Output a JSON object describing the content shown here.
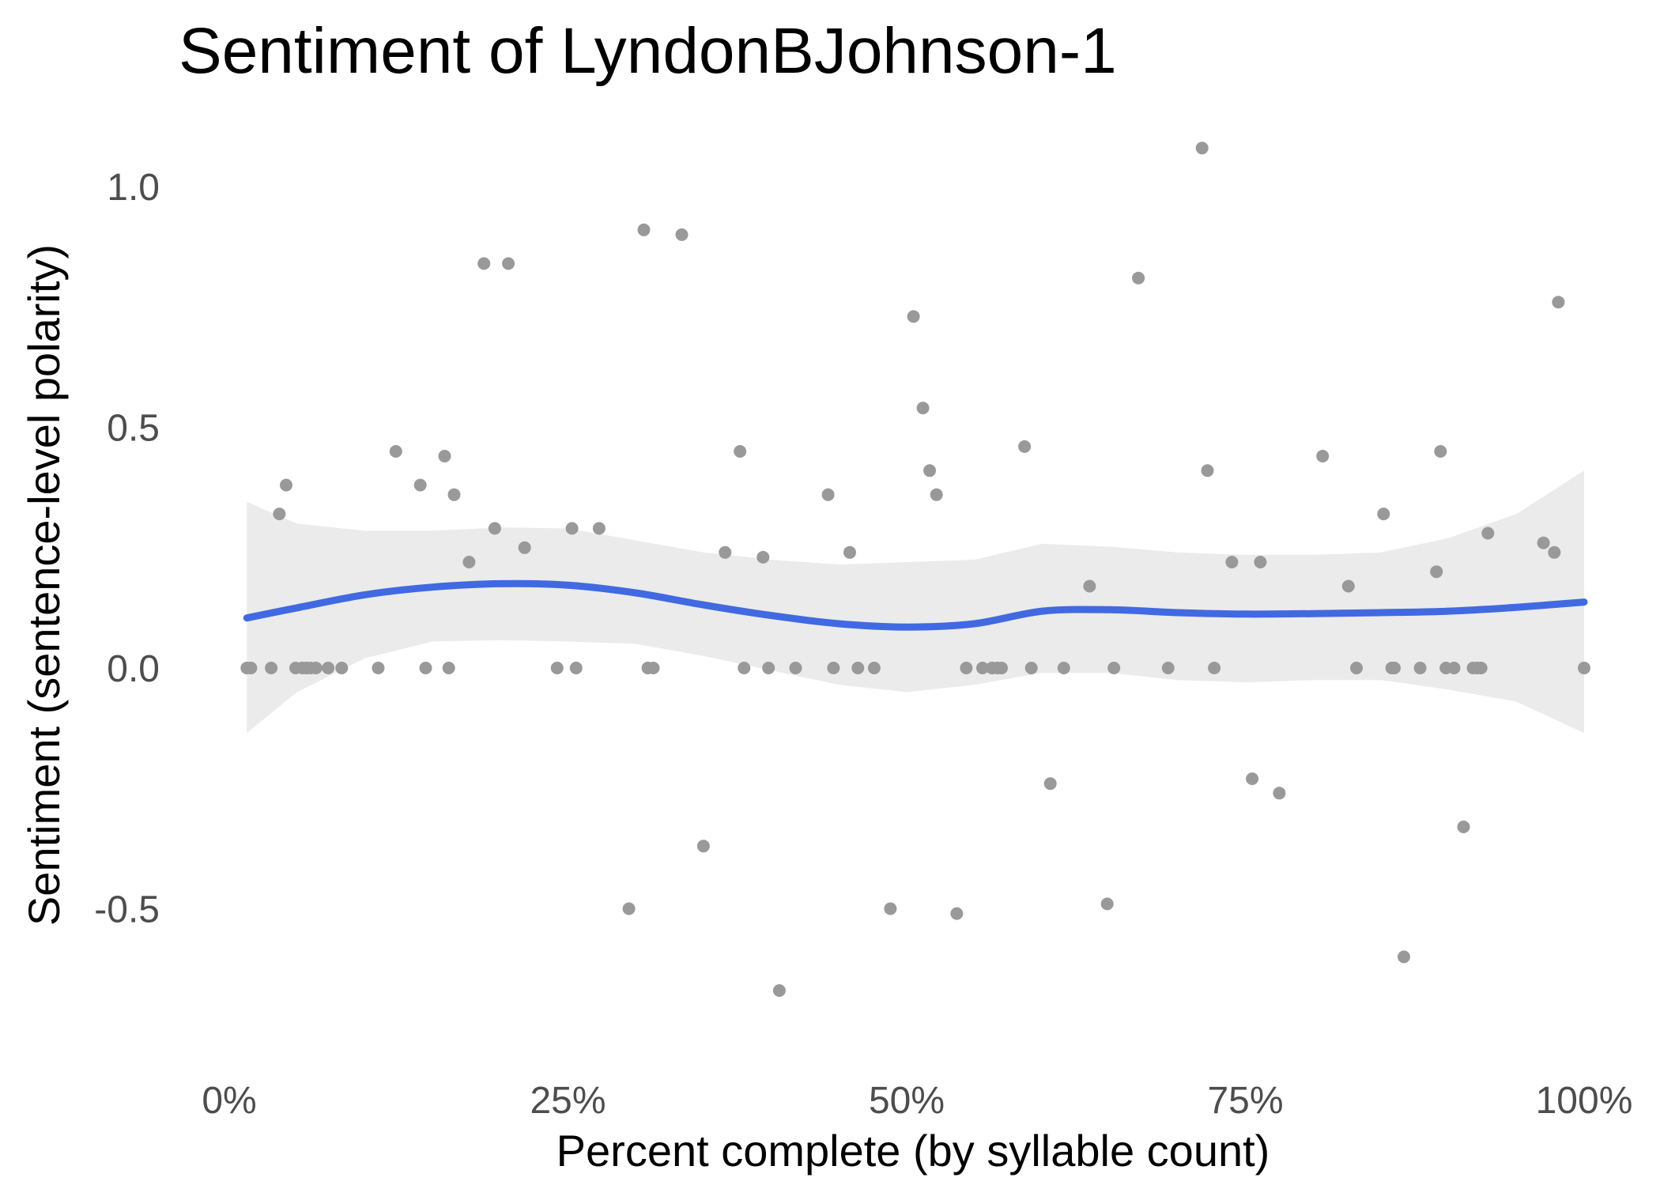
{
  "chart_data": {
    "type": "scatter",
    "title": "Sentiment of LyndonBJohnson-1",
    "xlabel": "Percent complete (by syllable count)",
    "ylabel": "Sentiment (sentence-level polarity)",
    "xlim": [
      0,
      100
    ],
    "ylim": [
      -0.8,
      1.1
    ],
    "x_ticks": [
      0,
      25,
      50,
      75,
      100
    ],
    "x_tick_labels": [
      "0%",
      "25%",
      "50%",
      "75%",
      "100%"
    ],
    "y_ticks": [
      -0.5,
      0.0,
      0.5,
      1.0
    ],
    "y_tick_labels": [
      "-0.5",
      "0.0",
      "0.5",
      "1.0"
    ],
    "grid": false,
    "legend": "none",
    "colors": {
      "points": "#999999",
      "smooth_line": "#4169e1",
      "confidence_band": "#ebebeb"
    },
    "series": [
      {
        "kind": "points",
        "x": [
          1.3,
          1.6,
          3.1,
          3.7,
          4.2,
          4.9,
          5.4,
          5.7,
          6.0,
          6.4,
          7.3,
          8.3,
          11.0,
          12.3,
          14.1,
          14.5,
          15.9,
          16.2,
          16.6,
          17.7,
          18.8,
          19.6,
          20.6,
          21.8,
          24.2,
          25.3,
          25.6,
          27.3,
          29.5,
          30.6,
          30.9,
          31.3,
          33.4,
          35.0,
          36.6,
          37.7,
          38.0,
          39.4,
          39.8,
          40.6,
          41.8,
          44.2,
          44.6,
          45.8,
          46.4,
          47.6,
          48.8,
          50.5,
          51.2,
          51.7,
          52.2,
          53.7,
          54.4,
          55.6,
          56.3,
          56.7,
          57.0,
          58.7,
          59.2,
          60.6,
          61.6,
          63.5,
          64.8,
          65.3,
          67.1,
          69.3,
          71.8,
          72.2,
          72.7,
          74.0,
          75.5,
          76.1,
          77.5,
          80.7,
          82.6,
          83.2,
          85.2,
          85.8,
          86.0,
          86.7,
          87.9,
          89.1,
          89.4,
          89.8,
          90.4,
          91.1,
          91.8,
          92.1,
          92.4,
          92.9,
          97.0,
          97.8,
          98.1,
          100.0
        ],
        "y": [
          0.0,
          0.0,
          0.0,
          0.32,
          0.38,
          0.0,
          0.0,
          0.0,
          0.0,
          0.0,
          0.0,
          0.0,
          0.0,
          0.45,
          0.38,
          0.0,
          0.44,
          0.0,
          0.36,
          0.22,
          0.84,
          0.29,
          0.84,
          0.25,
          0.0,
          0.29,
          0.0,
          0.29,
          -0.5,
          0.91,
          0.0,
          0.0,
          0.9,
          -0.37,
          0.24,
          0.45,
          0.0,
          0.23,
          0.0,
          -0.67,
          0.0,
          0.36,
          0.0,
          0.24,
          0.0,
          0.0,
          -0.5,
          0.73,
          0.54,
          0.41,
          0.36,
          -0.51,
          0.0,
          0.0,
          0.0,
          0.0,
          0.0,
          0.46,
          0.0,
          -0.24,
          0.0,
          0.17,
          -0.49,
          0.0,
          0.81,
          0.0,
          1.08,
          0.41,
          0.0,
          0.22,
          -0.23,
          0.22,
          -0.26,
          0.44,
          0.17,
          0.0,
          0.32,
          0.0,
          0.0,
          -0.6,
          0.0,
          0.2,
          0.45,
          0.0,
          0.0,
          -0.33,
          0.0,
          0.0,
          0.0,
          0.28,
          0.26,
          0.24,
          0.76,
          0.0
        ]
      },
      {
        "kind": "smooth",
        "x": [
          1.3,
          5,
          10,
          15,
          20,
          25,
          30,
          35,
          40,
          45,
          50,
          55,
          60,
          65,
          70,
          75,
          80,
          85,
          90,
          95,
          100
        ],
        "y": [
          0.104,
          0.125,
          0.152,
          0.168,
          0.175,
          0.172,
          0.156,
          0.131,
          0.109,
          0.092,
          0.085,
          0.092,
          0.118,
          0.121,
          0.115,
          0.112,
          0.113,
          0.115,
          0.118,
          0.126,
          0.137
        ],
        "lower": [
          -0.135,
          -0.05,
          0.02,
          0.055,
          0.058,
          0.055,
          0.05,
          0.025,
          -0.005,
          -0.035,
          -0.05,
          -0.035,
          -0.01,
          -0.01,
          -0.025,
          -0.03,
          -0.025,
          -0.025,
          -0.045,
          -0.07,
          -0.135
        ],
        "upper": [
          0.345,
          0.3,
          0.285,
          0.285,
          0.292,
          0.29,
          0.265,
          0.24,
          0.225,
          0.215,
          0.22,
          0.225,
          0.258,
          0.252,
          0.24,
          0.235,
          0.235,
          0.24,
          0.27,
          0.32,
          0.41
        ]
      }
    ]
  }
}
